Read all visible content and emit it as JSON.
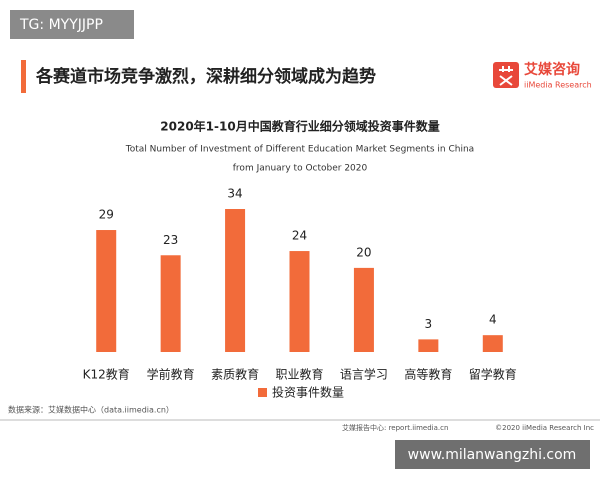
{
  "watermark_top": "TG: MYYJJPP",
  "header": {
    "title": "各赛道市场竞争激烈，深耕细分领域成为趋势",
    "logo_name": "艾媒咨询",
    "logo_sub": "iiMedia Research"
  },
  "chart_data": {
    "type": "bar",
    "title": "2020年1-10月中国教育行业细分领域投资事件数量",
    "subtitle": [
      "Total Number of Investment of Different Education Market Segments in China",
      "from January to October 2020"
    ],
    "categories": [
      "K12教育",
      "学前教育",
      "素质教育",
      "职业教育",
      "语言学习",
      "高等教育",
      "留学教育"
    ],
    "series": [
      {
        "name": "投资事件数量",
        "color": "#f26b3a",
        "values": [
          29,
          23,
          34,
          24,
          20,
          3,
          4
        ]
      }
    ],
    "legend": "bottom"
  },
  "source": "数据来源：艾媒数据中心（data.iimedia.cn）",
  "footer": {
    "report": "艾媒报告中心: report.iimedia.cn",
    "copyright": "©2020 iiMedia Research Inc"
  },
  "watermark_bottom": "www.milanwangzhi.com"
}
